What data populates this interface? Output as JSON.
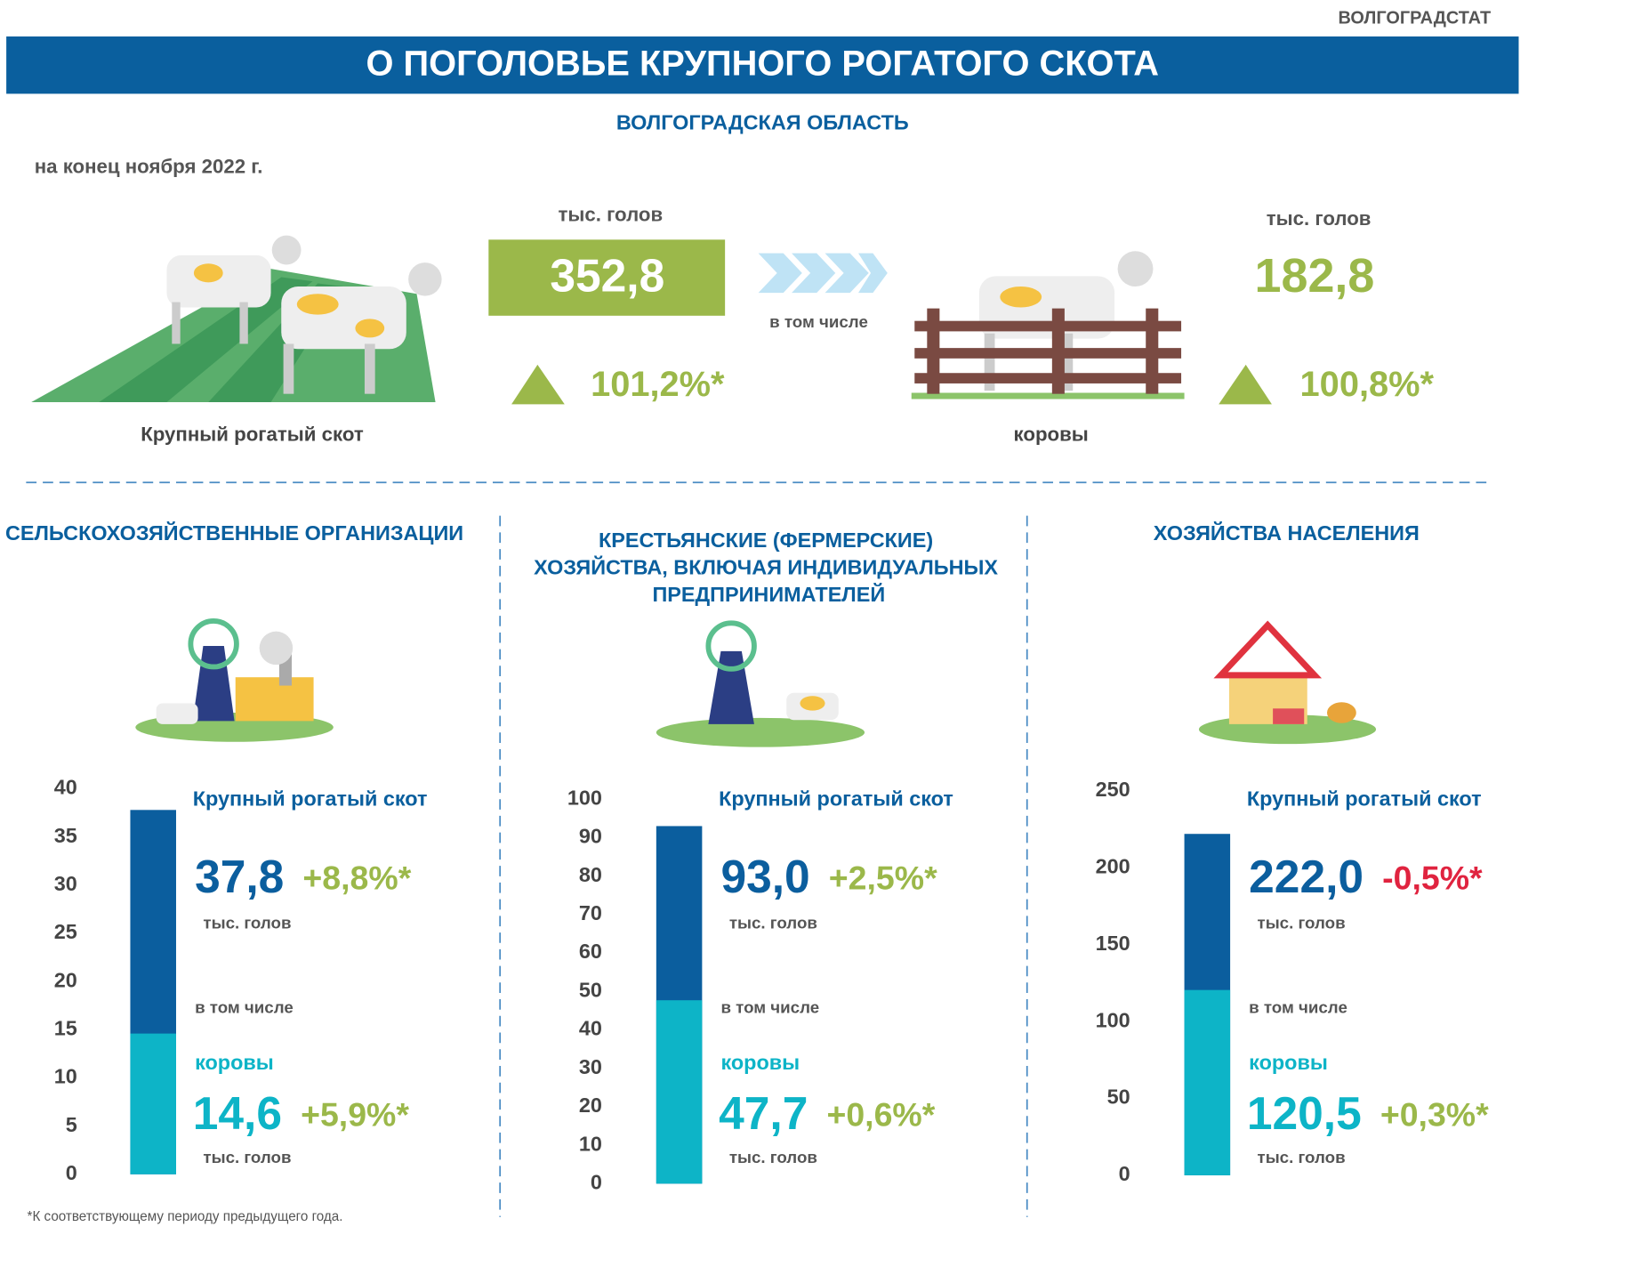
{
  "header": {
    "agency": "ВОЛГОГРАДСТАТ",
    "title": "О ПОГОЛОВЬЕ КРУПНОГО РОГАТОГО СКОТА",
    "region": "ВОЛГОГРАДСКАЯ ОБЛАСТЬ",
    "date": "на конец ноября 2022 г."
  },
  "summary": {
    "total": {
      "unit": "тыс. голов",
      "value": "352,8",
      "change": "101,2%*",
      "label": "Крупный рогатый скот"
    },
    "including": "в том числе",
    "cows": {
      "unit": "тыс. голов",
      "value": "182,8",
      "change": "100,8%*",
      "label": "коровы"
    }
  },
  "chart_data": [
    {
      "type": "bar",
      "title": "СЕЛЬСКОХОЗЯЙСТВЕННЫЕ ОРГАНИЗАЦИИ",
      "ylim": [
        0,
        40
      ],
      "yticks": [
        0,
        5,
        10,
        15,
        20,
        25,
        30,
        35,
        40
      ],
      "unit": "тыс. голов",
      "including": "в том числе",
      "series": [
        {
          "name": "Крупный рогатый скот",
          "color": "#0b5e9e",
          "values": [
            37.8
          ],
          "value_labels": [
            "37,8"
          ],
          "change": "+8,8%*",
          "change_color": "#9bb84a"
        },
        {
          "name": "коровы",
          "color": "#0db4c7",
          "values": [
            14.6
          ],
          "value_labels": [
            "14,6"
          ],
          "change": "+5,9%*",
          "change_color": "#9bb84a"
        }
      ]
    },
    {
      "type": "bar",
      "title": "КРЕСТЬЯНСКИЕ (ФЕРМЕРСКИЕ) ХОЗЯЙСТВА, ВКЛЮЧАЯ ИНДИВИДУАЛЬНЫХ ПРЕДПРИНИМАТЕЛЕЙ",
      "ylim": [
        0,
        100
      ],
      "yticks": [
        0,
        10,
        20,
        30,
        40,
        50,
        60,
        70,
        80,
        90,
        100
      ],
      "unit": "тыс. голов",
      "including": "в том числе",
      "series": [
        {
          "name": "Крупный рогатый скот",
          "color": "#0b5e9e",
          "values": [
            93.0
          ],
          "value_labels": [
            "93,0"
          ],
          "change": "+2,5%*",
          "change_color": "#9bb84a"
        },
        {
          "name": "коровы",
          "color": "#0db4c7",
          "values": [
            47.7
          ],
          "value_labels": [
            "47,7"
          ],
          "change": "+0,6%*",
          "change_color": "#9bb84a"
        }
      ]
    },
    {
      "type": "bar",
      "title": "ХОЗЯЙСТВА НАСЕЛЕНИЯ",
      "ylim": [
        0,
        250
      ],
      "yticks": [
        0,
        50,
        100,
        150,
        200,
        250
      ],
      "unit": "тыс. голов",
      "including": "в том числе",
      "series": [
        {
          "name": "Крупный рогатый скот",
          "color": "#0b5e9e",
          "values": [
            222.0
          ],
          "value_labels": [
            "222,0"
          ],
          "change": "-0,5%*",
          "change_color": "#e0233f"
        },
        {
          "name": "коровы",
          "color": "#0db4c7",
          "values": [
            120.5
          ],
          "value_labels": [
            "120,5"
          ],
          "change": "+0,3%*",
          "change_color": "#9bb84a"
        }
      ]
    }
  ],
  "footnote": "*К соответствующему периоду предыдущего года."
}
